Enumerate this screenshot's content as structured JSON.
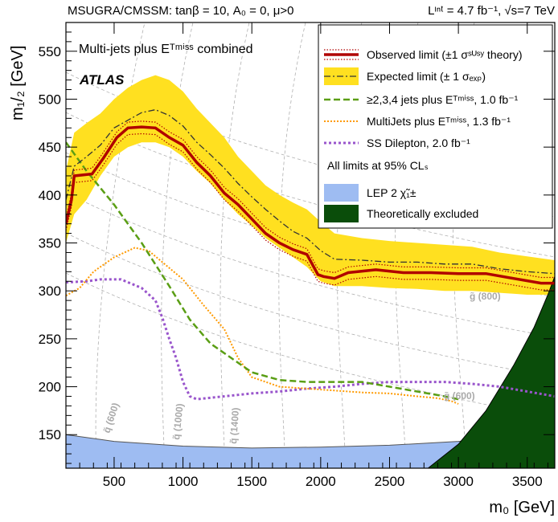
{
  "header": {
    "left": "MSUGRA/CMSSM: tanβ = 10, A₀ = 0, μ>0",
    "right": "Lᶦⁿᵗ = 4.7 fb⁻¹, √s=7 TeV"
  },
  "plot_title": "Multi-jets plus Eᵀᵐⁱˢˢ combined",
  "experiment": "ATLAS",
  "limit_note": "All limits at 95% CLₛ",
  "colors": {
    "observed": "#b00000",
    "expected_band": "#ffe020",
    "jets234": "#5a9e14",
    "multijets": "#ff9a00",
    "ssdilepton": "#9955cc",
    "lep": "#9ebcf2",
    "theory": "#0a4d0a"
  },
  "grid_labels": {
    "squark_600": "q̃ (600)",
    "squark_1000": "q̃ (1000)",
    "squark_1400": "q̃ (1400)",
    "gluino_800": "g̃ (800)",
    "gluino_600": "g̃ (600)"
  },
  "chart_data": {
    "type": "line",
    "xlabel": "m₀ [GeV]",
    "ylabel": "m₁/₂ [GeV]",
    "xlim": [
      150,
      3700
    ],
    "ylim": [
      115,
      580
    ],
    "xticks": [
      500,
      1000,
      1500,
      2000,
      2500,
      3000,
      3500
    ],
    "yticks": [
      150,
      200,
      250,
      300,
      350,
      400,
      450,
      500,
      550
    ],
    "legend_position": "top-right",
    "series": [
      {
        "name": "Observed limit (±1 σˢᵁˢʸ theory)",
        "key": "observed",
        "x": [
          150,
          190,
          210,
          340,
          420,
          520,
          600,
          700,
          800,
          900,
          1000,
          1100,
          1200,
          1300,
          1400,
          1500,
          1600,
          1700,
          1800,
          1900,
          1980,
          2020,
          2100,
          2200,
          2400,
          2600,
          2800,
          3000,
          3200,
          3400,
          3600,
          3700
        ],
        "y": [
          370,
          395,
          420,
          422,
          438,
          460,
          470,
          471,
          470,
          460,
          452,
          434,
          420,
          402,
          390,
          375,
          360,
          350,
          343,
          338,
          317,
          315,
          313,
          319,
          322,
          319,
          319,
          318,
          318,
          313,
          308,
          308
        ]
      },
      {
        "name": "Expected limit (± 1 σₑₓₚ)",
        "key": "expected",
        "x": [
          150,
          210,
          300,
          400,
          500,
          600,
          700,
          800,
          900,
          1000,
          1100,
          1200,
          1300,
          1400,
          1500,
          1600,
          1700,
          1800,
          1900,
          2000,
          2100,
          2300,
          2500,
          2700,
          2900,
          3100,
          3300,
          3500,
          3700
        ],
        "y": [
          395,
          430,
          440,
          452,
          470,
          478,
          486,
          489,
          483,
          472,
          455,
          442,
          428,
          412,
          398,
          385,
          373,
          362,
          355,
          342,
          333,
          332,
          330,
          330,
          328,
          328,
          323,
          320,
          318
        ],
        "band_upper": [
          425,
          465,
          475,
          485,
          500,
          512,
          520,
          525,
          520,
          508,
          490,
          475,
          460,
          440,
          425,
          410,
          400,
          392,
          385,
          372,
          360,
          355,
          352,
          350,
          348,
          346,
          340,
          336,
          332
        ],
        "band_lower": [
          350,
          380,
          395,
          420,
          440,
          450,
          455,
          455,
          450,
          440,
          425,
          412,
          395,
          380,
          368,
          355,
          345,
          335,
          325,
          310,
          305,
          305,
          303,
          302,
          300,
          300,
          298,
          296,
          296
        ]
      },
      {
        "name": "≥2,3,4 jets plus Eᵀᵐⁱˢˢ, 1.0 fb⁻¹",
        "key": "jets234",
        "x": [
          150,
          300,
          500,
          700,
          900,
          1050,
          1200,
          1400,
          1500,
          1700,
          1900,
          2100,
          2300,
          2500,
          2700,
          2900,
          3000
        ],
        "y": [
          455,
          425,
          390,
          350,
          305,
          270,
          245,
          225,
          215,
          207,
          205,
          205,
          205,
          200,
          195,
          190,
          187
        ]
      },
      {
        "name": "MultiJets plus Eᵀᵐⁱˢˢ, 1.3 fb⁻¹",
        "key": "multijets",
        "x": [
          150,
          250,
          350,
          500,
          650,
          750,
          850,
          1000,
          1150,
          1300,
          1400,
          1500,
          1700,
          1900,
          2100,
          2300,
          2500,
          2700,
          2850,
          2950,
          3000
        ],
        "y": [
          295,
          303,
          320,
          335,
          345,
          342,
          330,
          312,
          285,
          260,
          230,
          210,
          200,
          198,
          196,
          194,
          193,
          190,
          188,
          185,
          182
        ]
      },
      {
        "name": "SS Dilepton, 2.0 fb⁻¹",
        "key": "ssdilepton",
        "x": [
          150,
          300,
          400,
          550,
          700,
          800,
          850,
          900,
          950,
          1000,
          1050,
          1100,
          1300,
          1500,
          1700,
          1900,
          2100,
          2300,
          2500,
          2700,
          2900,
          3100,
          3300,
          3500,
          3700
        ],
        "y": [
          309,
          310,
          312,
          312,
          303,
          290,
          272,
          250,
          230,
          205,
          190,
          187,
          190,
          193,
          195,
          198,
          200,
          203,
          205,
          205,
          205,
          203,
          200,
          195,
          190
        ]
      },
      {
        "name": "LEP 2 χ̃₁±",
        "key": "lep",
        "x": [
          150,
          500,
          1000,
          1500,
          2000,
          2500,
          3000,
          3500,
          3700
        ],
        "y": [
          150,
          143,
          138,
          136,
          137,
          139,
          143,
          149,
          154
        ]
      },
      {
        "name": "Theoretically excluded",
        "key": "theory",
        "x": [
          2780,
          3000,
          3200,
          3400,
          3550,
          3650,
          3700
        ],
        "y": [
          115,
          140,
          175,
          222,
          262,
          296,
          315
        ]
      }
    ]
  }
}
